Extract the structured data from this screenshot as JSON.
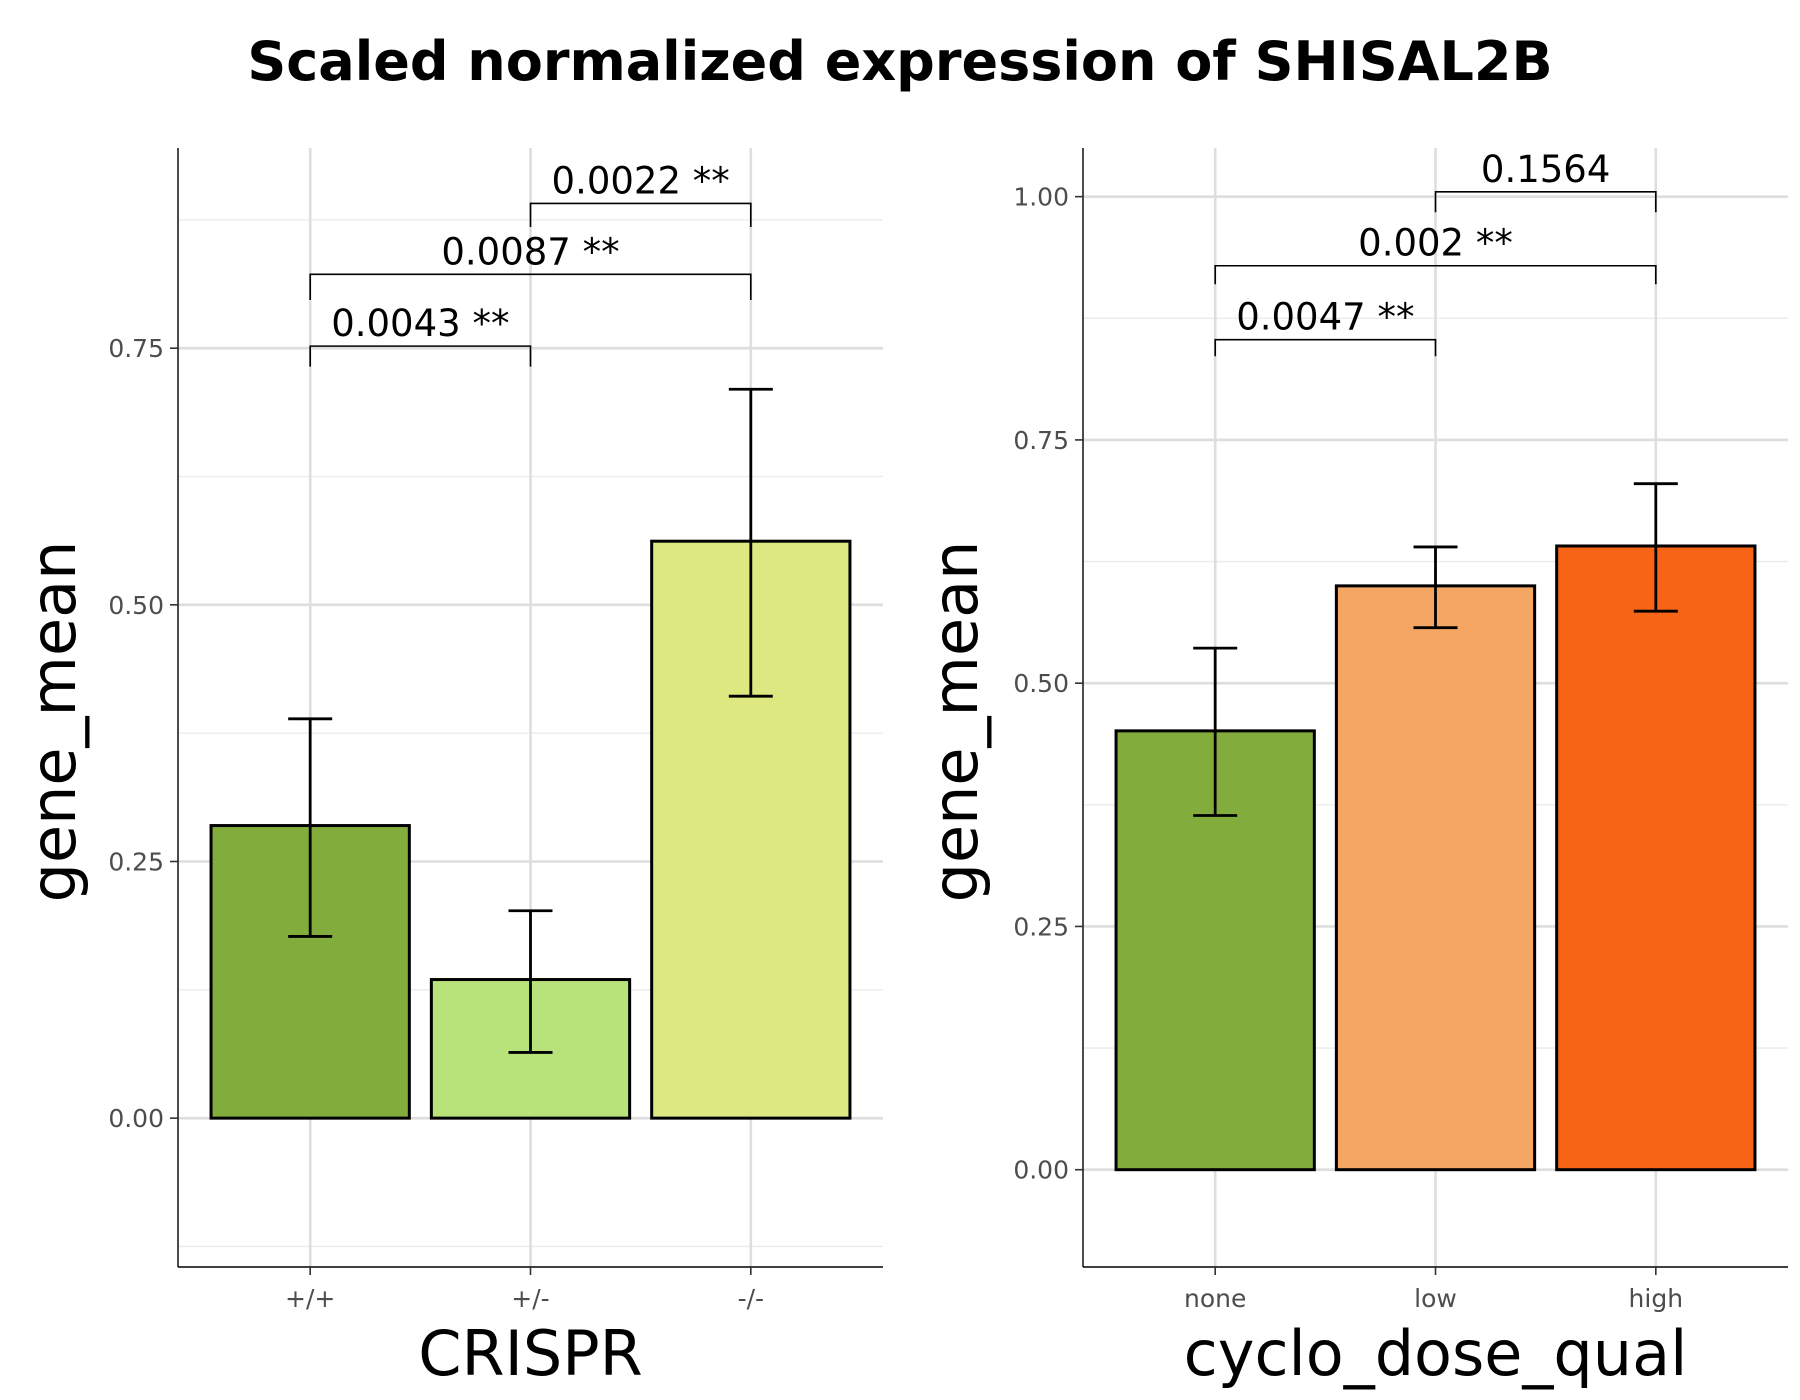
{
  "title": "Scaled normalized expression of SHISAL2B",
  "chart_data": [
    {
      "type": "bar",
      "xlabel": "CRISPR",
      "ylabel": "gene_mean",
      "ylim": [
        -0.145,
        0.945
      ],
      "yticks": [
        0.0,
        0.25,
        0.5,
        0.75
      ],
      "ytick_labels": [
        "0.00",
        "0.25",
        "0.50",
        "0.75"
      ],
      "categories": [
        "+/+",
        "+/-",
        "-/-"
      ],
      "values": [
        0.285,
        0.135,
        0.562
      ],
      "error_low": [
        0.177,
        0.064,
        0.411
      ],
      "error_high": [
        0.389,
        0.202,
        0.71
      ],
      "colors": [
        "#82ad3c",
        "#b8e27a",
        "#dde880"
      ],
      "comparisons": [
        {
          "from": 0,
          "to": 1,
          "label": "0.0043 **",
          "y": 0.752,
          "tick_bottom": 0.732
        },
        {
          "from": 0,
          "to": 2,
          "label": "0.0087 **",
          "y": 0.822,
          "tick_bottom": 0.797
        },
        {
          "from": 1,
          "to": 2,
          "label": "0.0022 **",
          "y": 0.891,
          "tick_bottom": 0.868
        }
      ],
      "grid": true
    },
    {
      "type": "bar",
      "xlabel": "cyclo_dose_qual",
      "ylabel": "gene_mean",
      "ylim": [
        -0.1,
        1.05
      ],
      "yticks": [
        0.0,
        0.25,
        0.5,
        0.75,
        1.0
      ],
      "ytick_labels": [
        "0.00",
        "0.25",
        "0.50",
        "0.75",
        "1.00"
      ],
      "categories": [
        "none",
        "low",
        "high"
      ],
      "values": [
        0.451,
        0.6,
        0.641
      ],
      "error_low": [
        0.364,
        0.557,
        0.574
      ],
      "error_high": [
        0.536,
        0.64,
        0.705
      ],
      "colors": [
        "#82ad3c",
        "#f5a663",
        "#f76415"
      ],
      "comparisons": [
        {
          "from": 0,
          "to": 1,
          "label": "0.0047 **",
          "y": 0.853,
          "tick_bottom": 0.836
        },
        {
          "from": 0,
          "to": 2,
          "label": "0.002 **",
          "y": 0.929,
          "tick_bottom": 0.91
        },
        {
          "from": 1,
          "to": 2,
          "label": "0.1564",
          "y": 1.005,
          "tick_bottom": 0.984
        }
      ],
      "grid": true
    }
  ]
}
